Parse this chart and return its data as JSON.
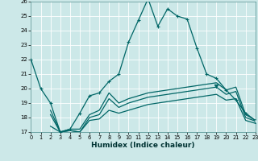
{
  "xlabel": "Humidex (Indice chaleur)",
  "background_color": "#cce8e8",
  "grid_color": "#ffffff",
  "line_color": "#006666",
  "x_ticks": [
    0,
    1,
    2,
    3,
    4,
    5,
    6,
    7,
    8,
    9,
    10,
    11,
    12,
    13,
    14,
    15,
    16,
    17,
    18,
    19,
    20,
    21,
    22,
    23
  ],
  "y_ticks": [
    17,
    18,
    19,
    20,
    21,
    22,
    23,
    24,
    25,
    26
  ],
  "xlim": [
    0,
    23
  ],
  "ylim": [
    17,
    26
  ],
  "line1_x": [
    0,
    1,
    2,
    3,
    4,
    5,
    6,
    7,
    8,
    9,
    10,
    11,
    12,
    13,
    14,
    15,
    16,
    17,
    18,
    19,
    20,
    21,
    22,
    23
  ],
  "line1_y": [
    22.0,
    20.0,
    19.0,
    17.0,
    17.2,
    18.3,
    19.5,
    19.7,
    20.5,
    21.0,
    23.2,
    24.7,
    26.2,
    24.3,
    25.5,
    25.0,
    24.8,
    22.8,
    21.0,
    20.7,
    19.9,
    19.2,
    18.3,
    17.8
  ],
  "line2_x": [
    2,
    3,
    4,
    5,
    6,
    7,
    8,
    9,
    10,
    11,
    12,
    13,
    14,
    15,
    16,
    17,
    18,
    19,
    20,
    21,
    22,
    23
  ],
  "line2_y": [
    18.5,
    17.0,
    17.2,
    17.2,
    18.2,
    18.5,
    19.7,
    19.0,
    19.3,
    19.5,
    19.7,
    19.8,
    19.9,
    20.0,
    20.1,
    20.2,
    20.3,
    20.4,
    19.9,
    20.1,
    18.2,
    17.8
  ],
  "line3_x": [
    2,
    3,
    4,
    5,
    6,
    7,
    8,
    9,
    10,
    11,
    12,
    13,
    14,
    15,
    16,
    17,
    18,
    19,
    20,
    21,
    22,
    23
  ],
  "line3_y": [
    18.2,
    17.0,
    17.1,
    17.0,
    18.0,
    18.2,
    19.3,
    18.7,
    19.0,
    19.2,
    19.4,
    19.5,
    19.6,
    19.7,
    19.8,
    19.9,
    20.0,
    20.1,
    19.6,
    19.8,
    18.0,
    17.75
  ],
  "line4_x": [
    2,
    3,
    4,
    5,
    6,
    7,
    8,
    9,
    10,
    11,
    12,
    13,
    14,
    15,
    16,
    17,
    18,
    19,
    20,
    21,
    22,
    23
  ],
  "line4_y": [
    17.4,
    17.0,
    17.1,
    17.0,
    17.8,
    17.9,
    18.5,
    18.3,
    18.5,
    18.7,
    18.9,
    19.0,
    19.1,
    19.2,
    19.3,
    19.4,
    19.5,
    19.6,
    19.2,
    19.3,
    17.8,
    17.6
  ],
  "triangle1_x": 19,
  "triangle1_y": 20.15,
  "triangle2_x": 23,
  "triangle2_y": 17.7
}
